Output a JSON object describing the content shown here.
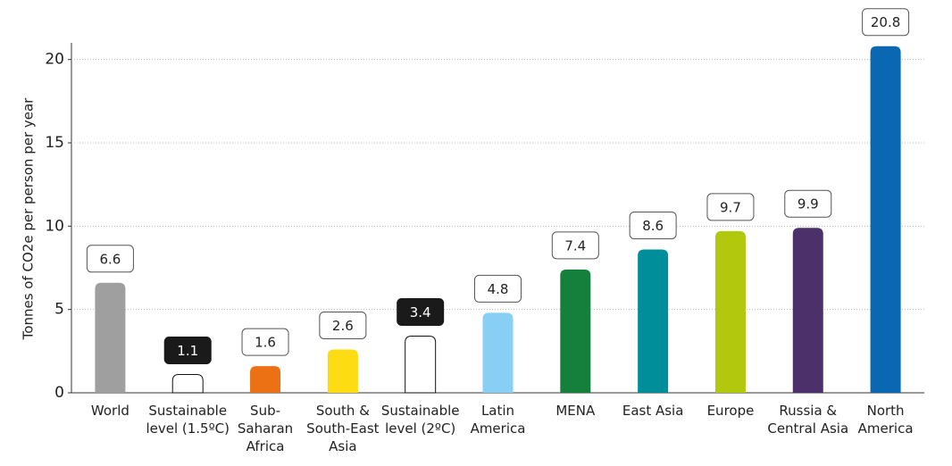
{
  "chart_data": {
    "type": "bar",
    "y_label": "Tonnes of CO2e per person per year",
    "categories": [
      "World",
      "Sustainable\nlevel (1.5ºC)",
      "Sub-\nSaharan\nAfrica",
      "South &\nSouth-East\nAsia",
      "Sustainable\nlevel (2ºC)",
      "Latin\nAmerica",
      "MENA",
      "East Asia",
      "Europe",
      "Russia &\nCentral Asia",
      "North\nAmerica"
    ],
    "values": [
      6.6,
      1.1,
      1.6,
      2.6,
      3.4,
      4.8,
      7.4,
      8.6,
      9.7,
      9.9,
      20.8
    ],
    "colors": [
      "#a09f9f",
      "#ffffff",
      "#ec7014",
      "#fddc13",
      "#ffffff",
      "#87cff5",
      "#14803c",
      "#008f9a",
      "#b1c80c",
      "#4b3069",
      "#0a68b2"
    ],
    "ylim": [
      0,
      21
    ],
    "yticks": [
      0,
      5,
      10,
      15,
      20
    ],
    "grid": true
  }
}
